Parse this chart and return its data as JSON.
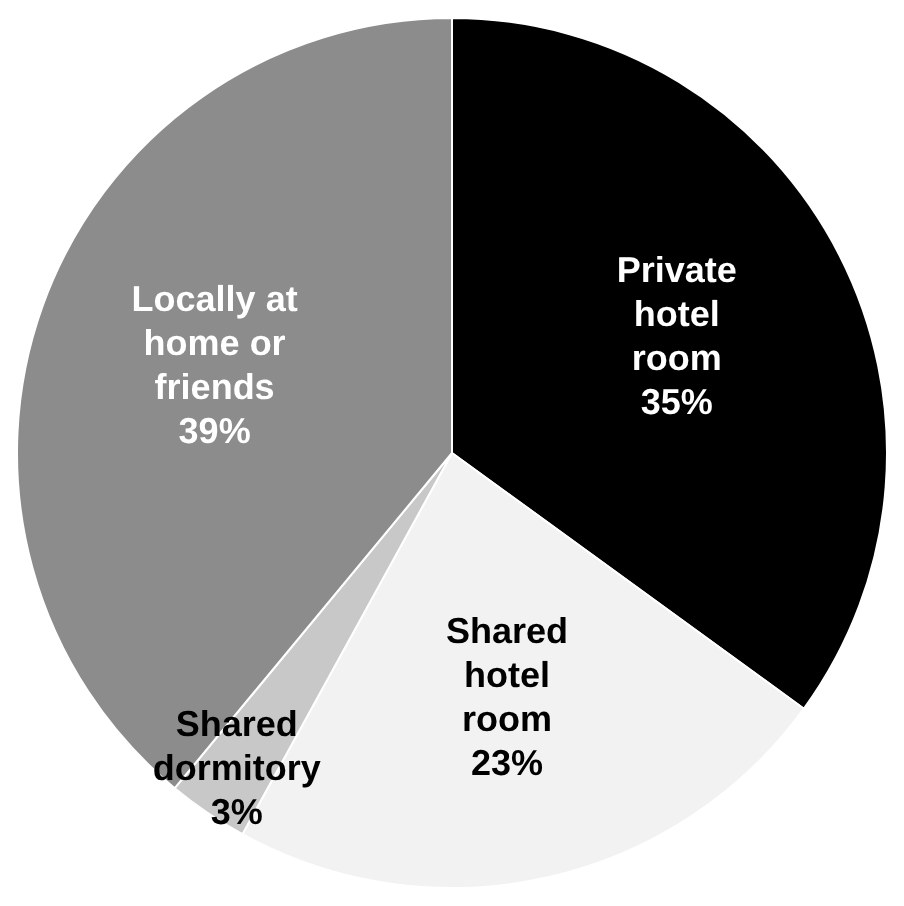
{
  "chart_data": {
    "type": "pie",
    "categories": [
      "Private hotel room",
      "Shared hotel room",
      "Shared dormitory",
      "Locally at home or friends"
    ],
    "values": [
      35,
      23,
      3,
      39
    ],
    "colors": [
      "#000000",
      "#f2f2f2",
      "#c8c8c8",
      "#8c8c8c"
    ],
    "value_labels": [
      "35%",
      "23%",
      "3%",
      "39%"
    ],
    "legend": false
  }
}
